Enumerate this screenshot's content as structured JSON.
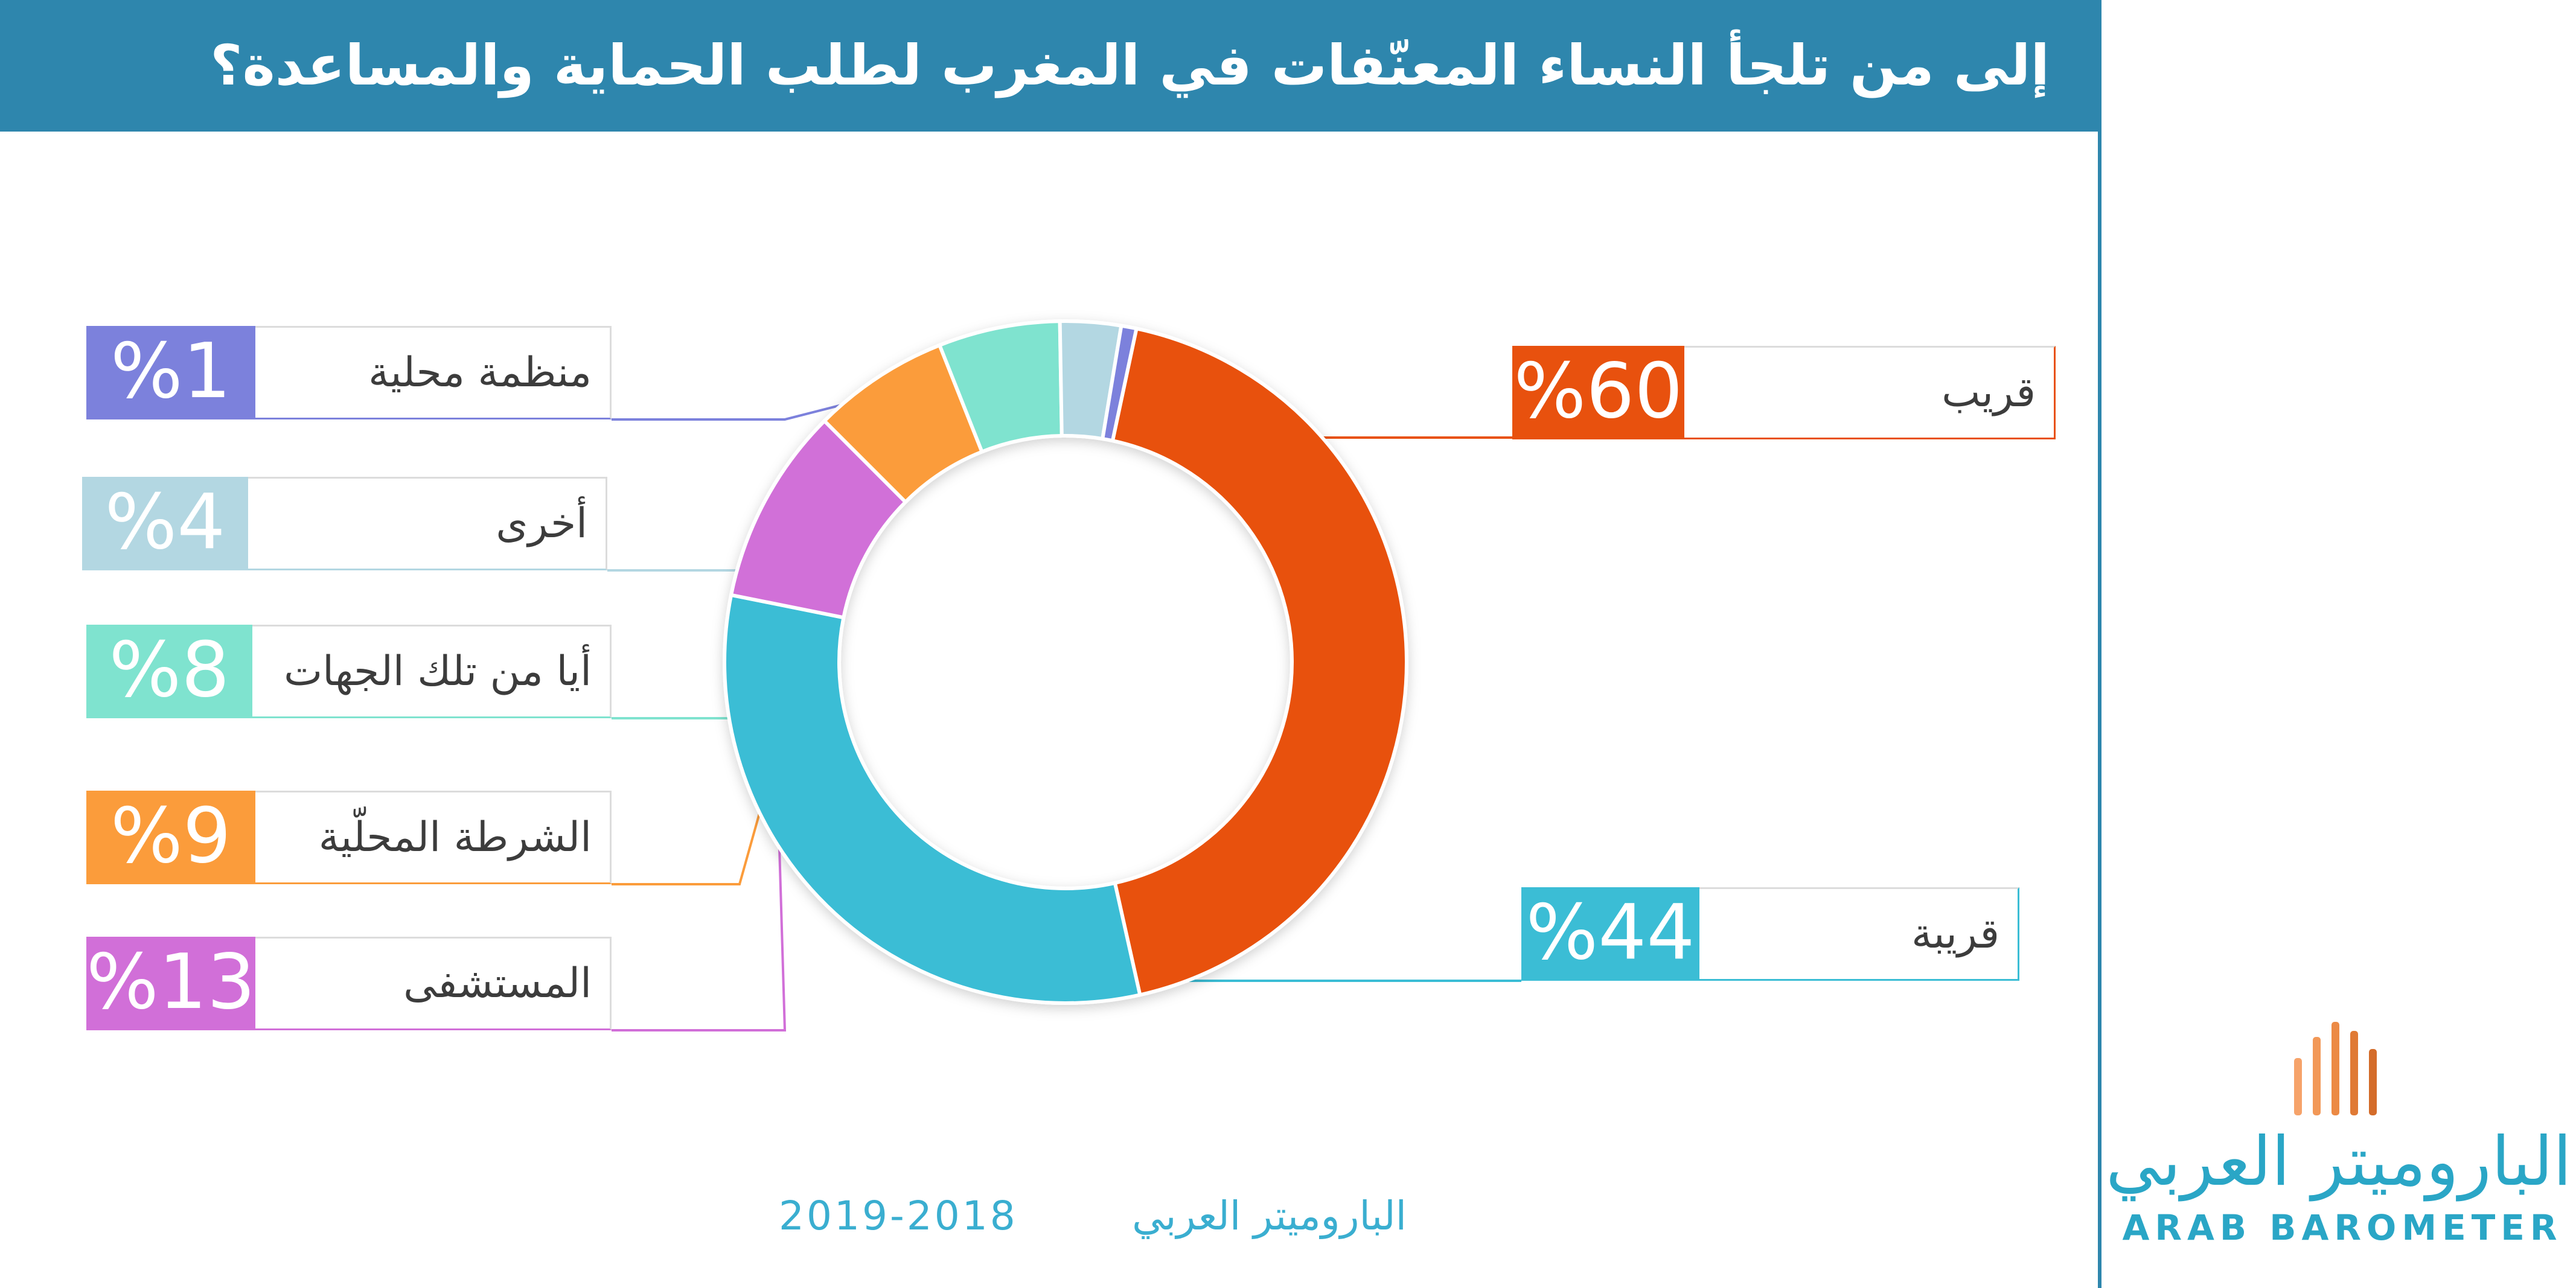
{
  "title": "إلى من تلجأ النساء المعنّفات في المغرب لطلب الحماية والمساعدة؟",
  "chart_data": {
    "type": "pie",
    "donut": true,
    "title": "إلى من تلجأ النساء المعنّفات في المغرب لطلب الحماية والمساعدة؟",
    "categories": [
      "قريب",
      "قريبة",
      "المستشفى",
      "الشرطة المحلّية",
      "أيا من تلك الجهات",
      "أخرى",
      "منظمة محلية"
    ],
    "values": [
      60,
      44,
      13,
      9,
      8,
      4,
      1
    ],
    "value_labels": [
      "%60",
      "%44",
      "%13",
      "%9",
      "%8",
      "%4",
      "%1"
    ],
    "colors": [
      "#e8510e",
      "#3bbdd5",
      "#d16fd8",
      "#fb9c3b",
      "#7fe3cf",
      "#b3d7e2",
      "#7c81dc"
    ]
  },
  "footer": {
    "source": "الباروميتر العربي",
    "years": "2019-2018"
  },
  "logo": {
    "arabic": "الباروميتر العربي",
    "english": "ARAB BAROMETER",
    "bar_colors": [
      "#f6a36a",
      "#f29857",
      "#ec8a45",
      "#e07a35",
      "#d46c2a"
    ]
  }
}
